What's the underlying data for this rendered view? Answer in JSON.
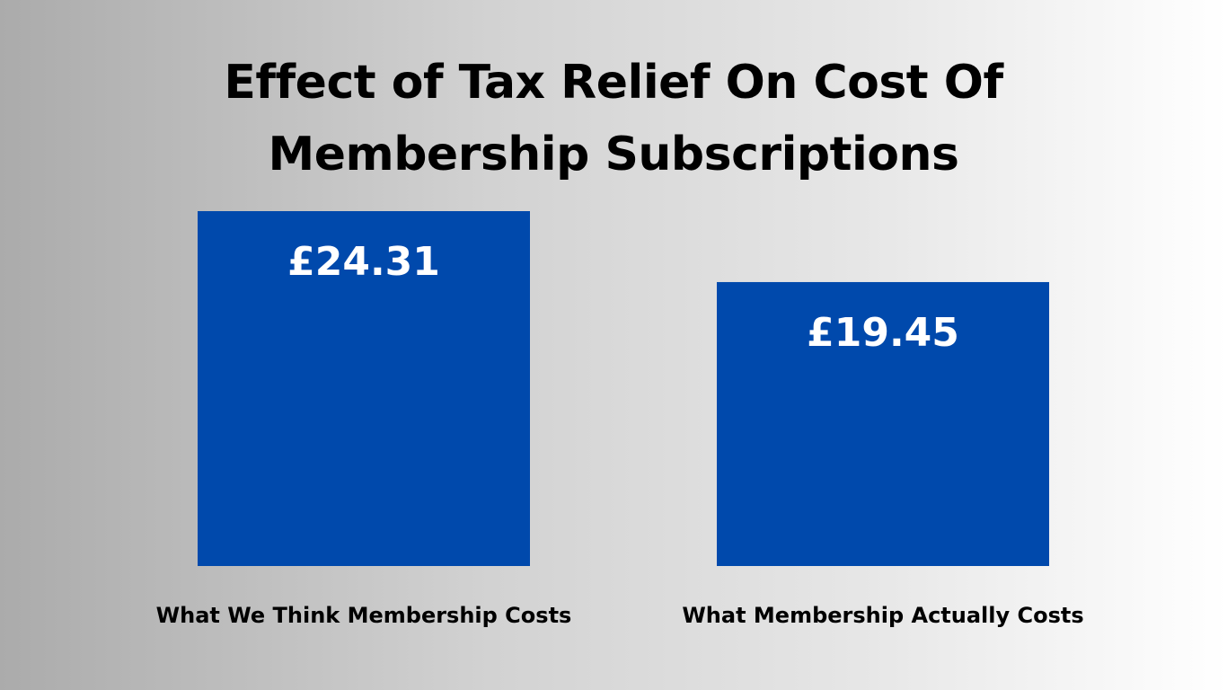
{
  "title_lines": [
    "Effect of Tax Relief On Cost Of",
    "Membership Subscriptions"
  ],
  "colors": {
    "bar": "#0049ac",
    "value_label": "#ffffff",
    "category_label": "#000000"
  },
  "chart_data": {
    "type": "bar",
    "title": "Effect of Tax Relief On Cost Of Membership Subscriptions",
    "categories": [
      "What We Think Membership Costs",
      "What Membership Actually Costs"
    ],
    "values": [
      24.31,
      19.45
    ],
    "data_labels": [
      "£24.31",
      "£19.45"
    ],
    "xlabel": "",
    "ylabel": "",
    "ylim": [
      0,
      24.31
    ],
    "grid": false,
    "legend": "none"
  }
}
